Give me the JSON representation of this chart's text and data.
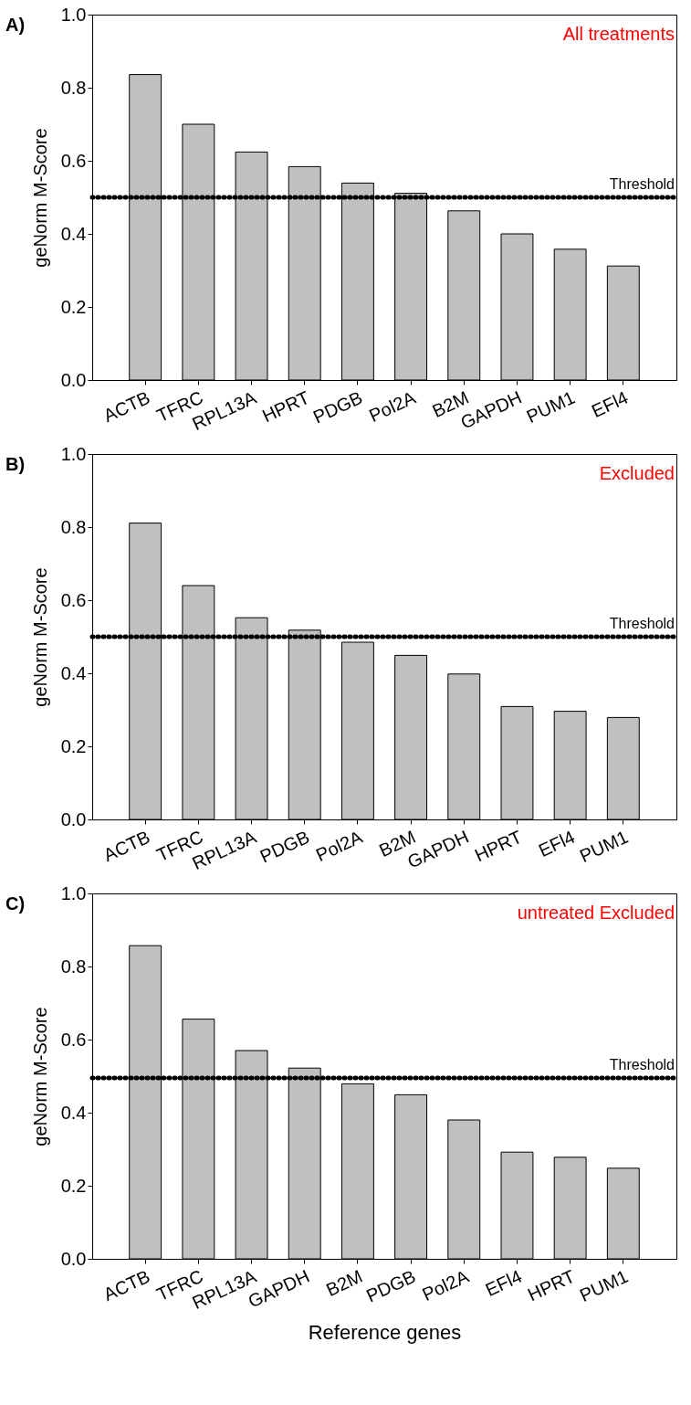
{
  "chart_data": [
    {
      "type": "bar",
      "title": "A)",
      "ylabel": "geNorm M-Score",
      "color": "#c0c0c0",
      "categories": [
        "ACTB",
        "TFRC",
        "RPL13A",
        "HPRT",
        "PDGB",
        "Pol2A",
        "B2M",
        "GAPDH",
        "PUM1",
        "EFl4"
      ],
      "values": [
        0.836,
        0.7,
        0.624,
        0.584,
        0.539,
        0.511,
        0.463,
        0.4,
        0.358,
        0.312
      ],
      "ylim": [
        0,
        1
      ],
      "yticks": [
        {
          "value": 0,
          "label": "0.0"
        },
        {
          "value": 0.2,
          "label": "0.2"
        },
        {
          "value": 0.4,
          "label": "0.4"
        },
        {
          "value": 0.6,
          "label": "0.6"
        },
        {
          "value": 0.8,
          "label": "0.8"
        },
        {
          "value": 1,
          "label": "1.0"
        }
      ],
      "ref_lines": [
        {
          "axis": "y",
          "value": 0.5,
          "label": "Threshold",
          "color": "#000000",
          "line_style": "dotted"
        }
      ],
      "annotations": [
        "All treatments"
      ],
      "grid": false
    },
    {
      "type": "bar",
      "title": "B)",
      "ylabel": "geNorm M-Score",
      "color": "#c0c0c0",
      "categories": [
        "ACTB",
        "TFRC",
        "RPL13A",
        "PDGB",
        "Pol2A",
        "B2M",
        "GAPDH",
        "HPRT",
        "EFl4",
        "PUM1"
      ],
      "values": [
        0.811,
        0.64,
        0.552,
        0.518,
        0.485,
        0.449,
        0.398,
        0.309,
        0.296,
        0.279
      ],
      "ylim": [
        0,
        1
      ],
      "yticks": [
        {
          "value": 0,
          "label": "0.0"
        },
        {
          "value": 0.2,
          "label": "0.2"
        },
        {
          "value": 0.4,
          "label": "0.4"
        },
        {
          "value": 0.6,
          "label": "0.6"
        },
        {
          "value": 0.8,
          "label": "0.8"
        },
        {
          "value": 1,
          "label": "1.0"
        }
      ],
      "ref_lines": [
        {
          "axis": "y",
          "value": 0.5,
          "label": "Threshold",
          "color": "#000000",
          "line_style": "dotted"
        }
      ],
      "annotations": [
        "Excluded"
      ],
      "grid": false
    },
    {
      "type": "bar",
      "title": "C)",
      "ylabel": "geNorm M-Score",
      "xlabel": "Reference genes",
      "color": "#c0c0c0",
      "categories": [
        "ACTB",
        "TFRC",
        "RPL13A",
        "GAPDH",
        "B2M",
        "PDGB",
        "Pol2A",
        "EFl4",
        "HPRT",
        "PUM1"
      ],
      "values": [
        0.857,
        0.656,
        0.57,
        0.522,
        0.479,
        0.449,
        0.38,
        0.292,
        0.278,
        0.248
      ],
      "ylim": [
        0,
        1
      ],
      "yticks": [
        {
          "value": 0,
          "label": "0.0"
        },
        {
          "value": 0.2,
          "label": "0.2"
        },
        {
          "value": 0.4,
          "label": "0.4"
        },
        {
          "value": 0.6,
          "label": "0.6"
        },
        {
          "value": 0.8,
          "label": "0.8"
        },
        {
          "value": 1,
          "label": "1.0"
        }
      ],
      "ref_lines": [
        {
          "axis": "y",
          "value": 0.495,
          "label": "Threshold",
          "color": "#000000",
          "line_style": "dotted"
        }
      ],
      "annotations": [
        "untreated Excluded"
      ],
      "grid": false
    }
  ]
}
